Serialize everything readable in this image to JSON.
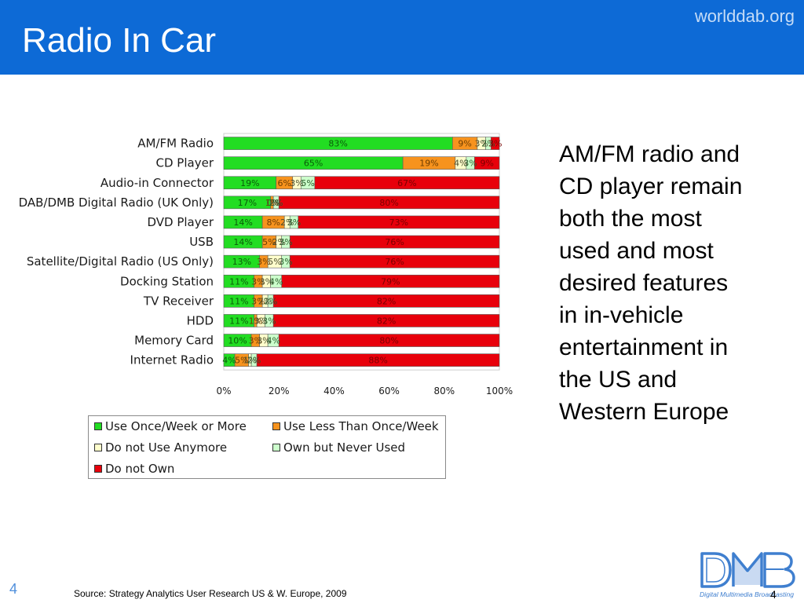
{
  "header": {
    "title": "Radio In Car",
    "site": "worlddab.org"
  },
  "body": {
    "text": "AM/FM radio and CD player remain both the most used and most desired features in in-vehicle entertainment in the US and Western Europe"
  },
  "footer": {
    "slide_number": "4",
    "source": "Source: Strategy Analytics User Research US & W. Europe, 2009",
    "slide_number_right": "4"
  },
  "logo": {
    "icon": "dmb-logo",
    "lettering": "DMB",
    "tagline": "Digital Multimedia Broadcasting"
  },
  "colors": {
    "header_bg": "#0d6ad6",
    "title": "#ffffff",
    "site": "#c5dcf7",
    "slide_number": "#4f8fdc",
    "logo": "#3f7fcf"
  },
  "chart_data": {
    "type": "bar",
    "orientation": "horizontal",
    "stacked": true,
    "categories": [
      "AM/FM Radio",
      "CD Player",
      "Audio-in Connector",
      "DAB/DMB Digital Radio (UK Only)",
      "DVD Player",
      "USB",
      "Satellite/Digital Radio (US Only)",
      "Docking Station",
      "TV Receiver",
      "HDD",
      "Memory Card",
      "Internet Radio"
    ],
    "series": [
      {
        "name": "Use Once/Week or More",
        "color": "#22dd22",
        "values": [
          83,
          65,
          19,
          17,
          14,
          14,
          13,
          11,
          11,
          11,
          10,
          4
        ]
      },
      {
        "name": "Use Less Than Once/Week",
        "color": "#f7931e",
        "values": [
          9,
          19,
          6,
          1,
          8,
          5,
          3,
          3,
          3,
          1,
          3,
          5
        ]
      },
      {
        "name": "Do not Use Anymore",
        "color": "#ffffcc",
        "values": [
          3,
          4,
          3,
          0,
          2,
          2,
          5,
          3,
          2,
          3,
          3,
          1
        ]
      },
      {
        "name": "Own but Never Used",
        "color": "#ccffcc",
        "values": [
          2,
          3,
          5,
          2,
          3,
          3,
          3,
          4,
          2,
          3,
          4,
          2
        ]
      },
      {
        "name": "Do not Own",
        "color": "#e8000b",
        "values": [
          3,
          9,
          67,
          80,
          73,
          76,
          76,
          79,
          82,
          82,
          80,
          88
        ]
      }
    ],
    "xlim": [
      0,
      100
    ],
    "x_ticks": [
      0,
      20,
      40,
      60,
      80,
      100
    ],
    "x_tick_labels": [
      "0%",
      "20%",
      "40%",
      "60%",
      "80%",
      "100%"
    ],
    "data_labels": true,
    "grid": false,
    "legend": "bottom"
  }
}
